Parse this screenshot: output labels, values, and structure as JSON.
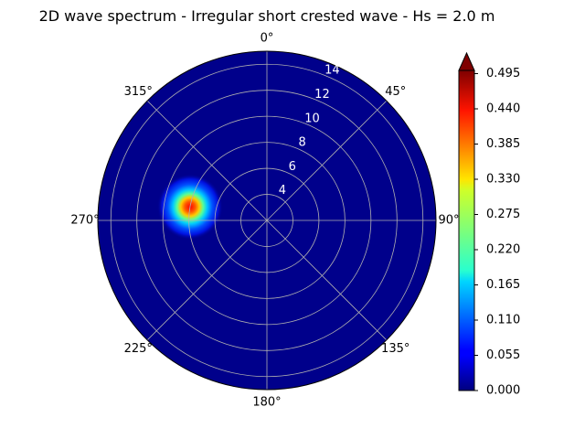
{
  "chart_data": {
    "type": "polar-heatmap",
    "title": "2D wave spectrum - Irregular short crested wave - Hs = 2.0 m",
    "angle_ticks": [
      {
        "deg": 0,
        "label": "0°"
      },
      {
        "deg": 45,
        "label": "45°"
      },
      {
        "deg": 90,
        "label": "90°"
      },
      {
        "deg": 135,
        "label": "135°"
      },
      {
        "deg": 180,
        "label": "180°"
      },
      {
        "deg": 225,
        "label": "225°"
      },
      {
        "deg": 270,
        "label": "270°"
      },
      {
        "deg": 315,
        "label": "315°"
      }
    ],
    "angle_direction": "clockwise, 0° at top",
    "radial_ticks": [
      4,
      6,
      8,
      10,
      12,
      14
    ],
    "radial_range": [
      2,
      15
    ],
    "grid": true,
    "colorbar": {
      "ticks": [
        "0.000",
        "0.055",
        "0.110",
        "0.165",
        "0.220",
        "0.275",
        "0.330",
        "0.385",
        "0.440",
        "0.495"
      ],
      "range": [
        0.0,
        0.5
      ],
      "extend": "max",
      "colormap": "jet"
    },
    "peak": {
      "direction_deg": 280,
      "radius": 8,
      "value": 0.495
    }
  }
}
